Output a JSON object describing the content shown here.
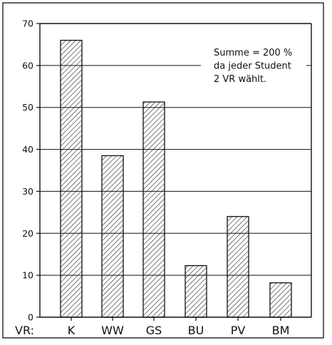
{
  "chart_data": {
    "type": "bar",
    "categories": [
      "K",
      "WW",
      "GS",
      "BU",
      "PV",
      "BM"
    ],
    "values": [
      66,
      38.5,
      51.3,
      12.3,
      24,
      8.2
    ],
    "ylim": [
      0,
      70
    ],
    "yticks": [
      0,
      10,
      20,
      30,
      40,
      50,
      60,
      70
    ],
    "grid": "horizontal",
    "bar_fill": "diagonal-hatch",
    "x_axis_prefix": "VR:",
    "annotation": {
      "lines": [
        "Summe = 200 %",
        "da jeder Student",
        "2 VR wählt."
      ],
      "placement": "top-right"
    },
    "colors": {
      "line": "#111111",
      "background": "#ffffff"
    }
  }
}
